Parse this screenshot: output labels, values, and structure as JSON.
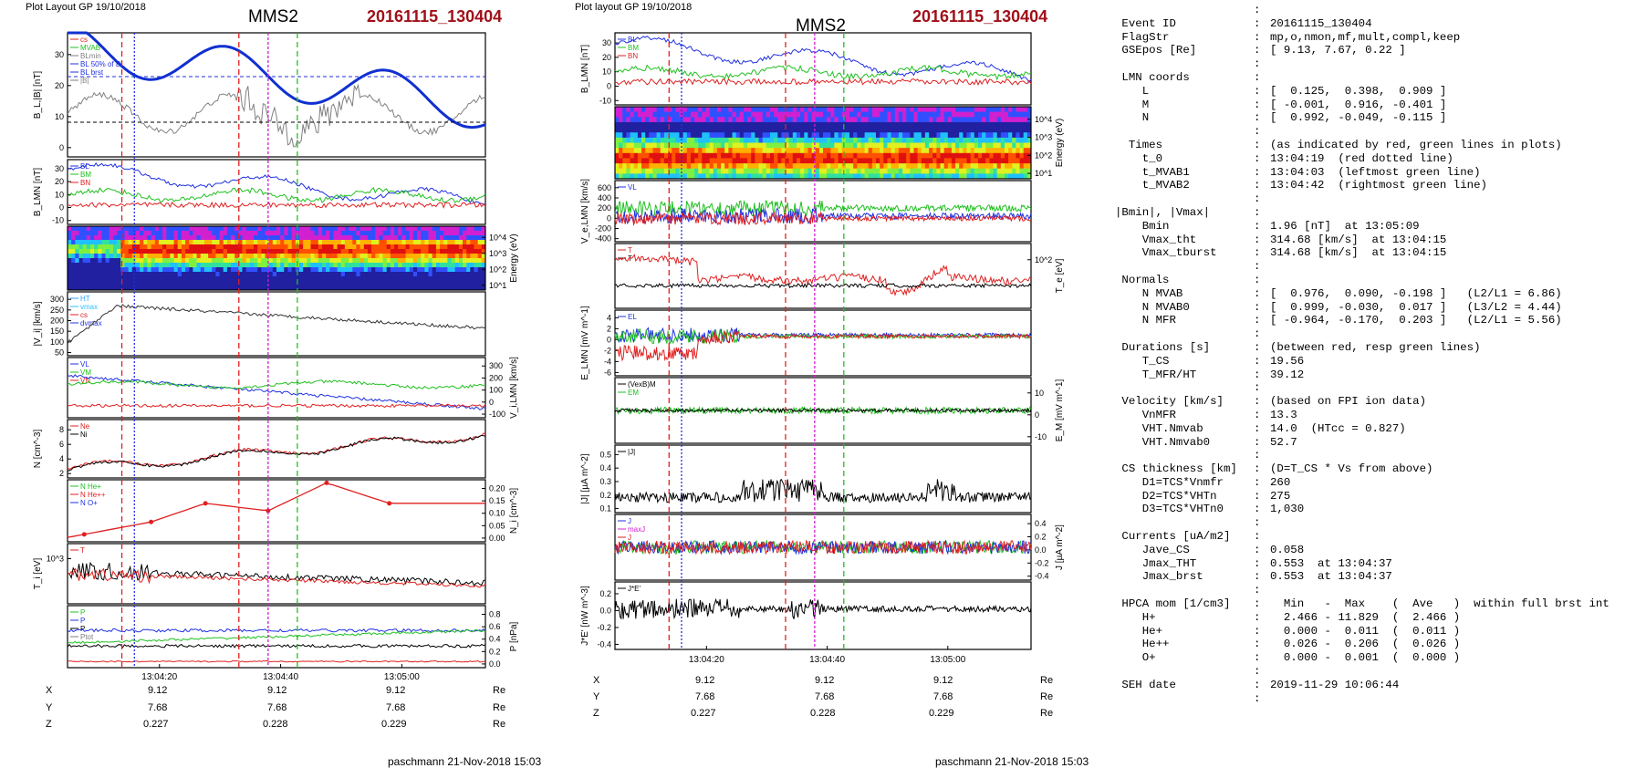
{
  "figure_a": {
    "layout_label": "Plot Layout GP 19/10/2018",
    "spacecraft": "MMS2",
    "event_label": "20161115_130404",
    "footer": "paschmann 21-Nov-2018 15:03",
    "time_labels": [
      "13:04:20",
      "13:04:40",
      "13:05:00"
    ],
    "coord_rows": [
      {
        "label": "X",
        "values": [
          "9.12",
          "9.12",
          "9.12"
        ],
        "unit": "Re"
      },
      {
        "label": "Y",
        "values": [
          "7.68",
          "7.68",
          "7.68"
        ],
        "unit": "Re"
      },
      {
        "label": "Z",
        "values": [
          "0.227",
          "0.228",
          "0.229"
        ],
        "unit": "Re"
      }
    ]
  },
  "figure_b": {
    "layout_label": "Plot layout GP 19/10/2018",
    "spacecraft": "MMS2",
    "event_label": "20161115_130404",
    "footer": "paschmann 21-Nov-2018 15:03",
    "time_labels": [
      "13:04:20",
      "13:04:40",
      "13:05:00"
    ],
    "coord_rows": [
      {
        "label": "X",
        "values": [
          "9.12",
          "9.12",
          "9.12"
        ],
        "unit": "Re"
      },
      {
        "label": "Y",
        "values": [
          "7.68",
          "7.68",
          "7.68"
        ],
        "unit": "Re"
      },
      {
        "label": "Z",
        "values": [
          "0.227",
          "0.228",
          "0.229"
        ],
        "unit": "Re"
      }
    ]
  },
  "colors": {
    "red": "#e02020",
    "green": "#20c020",
    "blue": "#2030e0",
    "magenta": "#d020d0",
    "gray": "#808080",
    "thick_blue": "#1030d0"
  },
  "chart_data": [
    {
      "type": "line",
      "id": "a1",
      "ylabel": "B_L,|B| [nT]",
      "yticks": [
        "0",
        "10",
        "20",
        "30"
      ],
      "legend": [
        "cs",
        "MVAB",
        "BLmin",
        "BL 50% of BL",
        "BL brst",
        "|B|"
      ]
    },
    {
      "type": "line",
      "id": "a2",
      "ylabel": "B_LMN [nT]",
      "yticks": [
        "-10",
        "0",
        "10",
        "20",
        "30"
      ],
      "legend": [
        "BL",
        "BM",
        "BN"
      ]
    },
    {
      "type": "heatmap",
      "id": "a3",
      "ylabel": "Energy (eV)",
      "yticks": [
        "10^1",
        "10^2",
        "10^3",
        "10^4"
      ]
    },
    {
      "type": "line",
      "id": "a4",
      "ylabel": "|V_i| [km/s]",
      "yticks": [
        "50",
        "100",
        "150",
        "200",
        "250",
        "300"
      ],
      "legend": [
        "HT",
        "vmax",
        "cs",
        "dvmax"
      ]
    },
    {
      "type": "line",
      "id": "a5",
      "ylabel": "V_i,LMN [km/s]",
      "yticks": [
        "-100",
        "0",
        "100",
        "200",
        "300"
      ],
      "legend": [
        "VL",
        "VM",
        "VN"
      ]
    },
    {
      "type": "line",
      "id": "a6",
      "ylabel": "N [cm^-3]",
      "yticks": [
        "2",
        "4",
        "6",
        "8"
      ],
      "legend": [
        "Ne",
        "Ni"
      ]
    },
    {
      "type": "line",
      "id": "a7",
      "ylabel": "N_i [cm^-3]",
      "yticks": [
        "0.00",
        "0.05",
        "0.10",
        "0.15",
        "0.20"
      ],
      "legend": [
        "N He+",
        "N He++",
        "N O+"
      ]
    },
    {
      "type": "line",
      "id": "a8",
      "ylabel": "T_i [eV]",
      "yticks": [
        "10^3"
      ],
      "legend": [
        "T"
      ]
    },
    {
      "type": "line",
      "id": "a9",
      "ylabel": "P [nPa]",
      "yticks": [
        "0.0",
        "0.2",
        "0.4",
        "0.6",
        "0.8"
      ],
      "legend": [
        "P",
        "P",
        "P",
        "Ptot"
      ]
    },
    {
      "type": "line",
      "id": "b1",
      "ylabel": "B_LMN [nT]",
      "yticks": [
        "-10",
        "0",
        "10",
        "20",
        "30"
      ],
      "legend": [
        "BL",
        "BM",
        "BN"
      ]
    },
    {
      "type": "heatmap",
      "id": "b2",
      "ylabel": "Energy (eV)",
      "yticks": [
        "10^1",
        "10^2",
        "10^3",
        "10^4"
      ]
    },
    {
      "type": "line",
      "id": "b3",
      "ylabel": "V_e,LMN [km/s]",
      "yticks": [
        "-400",
        "-200",
        "0",
        "200",
        "400",
        "600"
      ],
      "legend": [
        "VL"
      ]
    },
    {
      "type": "line",
      "id": "b4",
      "ylabel": "T_e [eV]",
      "yticks": [
        "10^2"
      ],
      "legend": [
        "T",
        "T"
      ]
    },
    {
      "type": "line",
      "id": "b5",
      "ylabel": "E_LMN [mV m^-1]",
      "yticks": [
        "-6",
        "-4",
        "-2",
        "0",
        "2",
        "4"
      ],
      "legend": [
        "EL"
      ]
    },
    {
      "type": "line",
      "id": "b6",
      "ylabel": "E_M [mV m^-1]",
      "yticks": [
        "-10",
        "0",
        "10"
      ],
      "legend": [
        "(VexB)M",
        "EM"
      ]
    },
    {
      "type": "line",
      "id": "b7",
      "ylabel": "|J| [µA m^-2]",
      "yticks": [
        "0.1",
        "0.2",
        "0.3",
        "0.4",
        "0.5"
      ],
      "legend": [
        "|J|"
      ]
    },
    {
      "type": "line",
      "id": "b8",
      "ylabel": "J [µA m^-2]",
      "yticks": [
        "-0.4",
        "-0.2",
        "0.0",
        "0.2",
        "0.4"
      ],
      "legend": [
        "J",
        "maxJ",
        "J"
      ]
    },
    {
      "type": "line",
      "id": "b9",
      "ylabel": "J*E' [nW m^-3]",
      "yticks": [
        "-0.4",
        "-0.2",
        "0.0",
        "0.2"
      ],
      "legend": [
        "J*E'"
      ]
    }
  ],
  "info": {
    "lines": [
      {
        "k": "",
        "sep": ":",
        "v": ""
      },
      {
        "k": " Event ID",
        "sep": ":",
        "v": "20161115_130404"
      },
      {
        "k": " FlagStr",
        "sep": ":",
        "v": "mp,o,nmon,mf,mult,compl,keep"
      },
      {
        "k": " GSEpos [Re]",
        "sep": ":",
        "v": "[ 9.13, 7.67, 0.22 ]"
      },
      {
        "k": "",
        "sep": ":",
        "v": ""
      },
      {
        "k": " LMN coords",
        "sep": ":",
        "v": ""
      },
      {
        "k": "    L",
        "sep": ":",
        "v": "[  0.125,  0.398,  0.909 ]"
      },
      {
        "k": "    M",
        "sep": ":",
        "v": "[ -0.001,  0.916, -0.401 ]"
      },
      {
        "k": "    N",
        "sep": ":",
        "v": "[  0.992, -0.049, -0.115 ]"
      },
      {
        "k": "",
        "sep": ":",
        "v": ""
      },
      {
        "k": "  Times",
        "sep": ":",
        "v": "(as indicated by red, green lines in plots)"
      },
      {
        "k": "    t_0",
        "sep": ":",
        "v": "13:04:19  (red dotted line)"
      },
      {
        "k": "    t_MVAB1",
        "sep": ":",
        "v": "13:04:03  (leftmost green line)"
      },
      {
        "k": "    t_MVAB2",
        "sep": ":",
        "v": "13:04:42  (rightmost green line)"
      },
      {
        "k": "",
        "sep": ":",
        "v": ""
      },
      {
        "k": "|Bmin|, |Vmax|",
        "sep": ":",
        "v": ""
      },
      {
        "k": "    Bmin",
        "sep": ":",
        "v": "1.96 [nT]  at 13:05:09"
      },
      {
        "k": "    Vmax_tht",
        "sep": ":",
        "v": "314.68 [km/s]  at 13:04:15"
      },
      {
        "k": "    Vmax_tburst",
        "sep": ":",
        "v": "314.68 [km/s]  at 13:04:15"
      },
      {
        "k": "",
        "sep": ":",
        "v": ""
      },
      {
        "k": " Normals",
        "sep": ":",
        "v": ""
      },
      {
        "k": "    N MVAB",
        "sep": ":",
        "v": "[  0.976,  0.090, -0.198 ]   (L2/L1 = 6.86)"
      },
      {
        "k": "    N MVAB0",
        "sep": ":",
        "v": "[  0.999, -0.030,  0.017 ]   (L3/L2 = 4.44)"
      },
      {
        "k": "    N MFR",
        "sep": ":",
        "v": "[ -0.964, -0.170,  0.203 ]   (L2/L1 = 5.56)"
      },
      {
        "k": "",
        "sep": ":",
        "v": ""
      },
      {
        "k": " Durations [s]",
        "sep": ":",
        "v": "(between red, resp green lines)"
      },
      {
        "k": "    T_CS",
        "sep": ":",
        "v": "19.56"
      },
      {
        "k": "    T_MFR/HT",
        "sep": ":",
        "v": "39.12"
      },
      {
        "k": "",
        "sep": ":",
        "v": ""
      },
      {
        "k": " Velocity [km/s]",
        "sep": ":",
        "v": "(based on FPI ion data)"
      },
      {
        "k": "    VnMFR",
        "sep": ":",
        "v": "13.3"
      },
      {
        "k": "    VHT.Nmvab",
        "sep": ":",
        "v": "14.0  (HTcc = 0.827)"
      },
      {
        "k": "    VHT.Nmvab0",
        "sep": ":",
        "v": "52.7"
      },
      {
        "k": "",
        "sep": ":",
        "v": ""
      },
      {
        "k": " CS thickness [km]",
        "sep": ":",
        "v": "(D=T_CS * Vs from above)"
      },
      {
        "k": "    D1=TCS*Vnmfr",
        "sep": ":",
        "v": "260"
      },
      {
        "k": "    D2=TCS*VHTn",
        "sep": ":",
        "v": "275"
      },
      {
        "k": "    D3=TCS*VHTn0",
        "sep": ":",
        "v": "1,030"
      },
      {
        "k": "",
        "sep": ":",
        "v": ""
      },
      {
        "k": " Currents [uA/m2]",
        "sep": ":",
        "v": ""
      },
      {
        "k": "    Jave_CS",
        "sep": ":",
        "v": "0.058"
      },
      {
        "k": "    Jmax_THT",
        "sep": ":",
        "v": "0.553  at 13:04:37"
      },
      {
        "k": "    Jmax_brst",
        "sep": ":",
        "v": "0.553  at 13:04:37"
      },
      {
        "k": "",
        "sep": ":",
        "v": ""
      },
      {
        "k": " HPCA mom [1/cm3]",
        "sep": ":",
        "v": "  Min   -  Max    (  Ave   )  within full brst int"
      },
      {
        "k": "    H+",
        "sep": ":",
        "v": "  2.466 - 11.829  (  2.466 )"
      },
      {
        "k": "    He+",
        "sep": ":",
        "v": "  0.000 -  0.011  (  0.011 )"
      },
      {
        "k": "    He++",
        "sep": ":",
        "v": "  0.026 -  0.206  (  0.026 )"
      },
      {
        "k": "    O+",
        "sep": ":",
        "v": "  0.000 -  0.001  (  0.000 )"
      },
      {
        "k": "",
        "sep": ":",
        "v": ""
      },
      {
        "k": " SEH date",
        "sep": ":",
        "v": "2019-11-29 10:06:44"
      },
      {
        "k": "",
        "sep": ":",
        "v": ""
      }
    ]
  }
}
